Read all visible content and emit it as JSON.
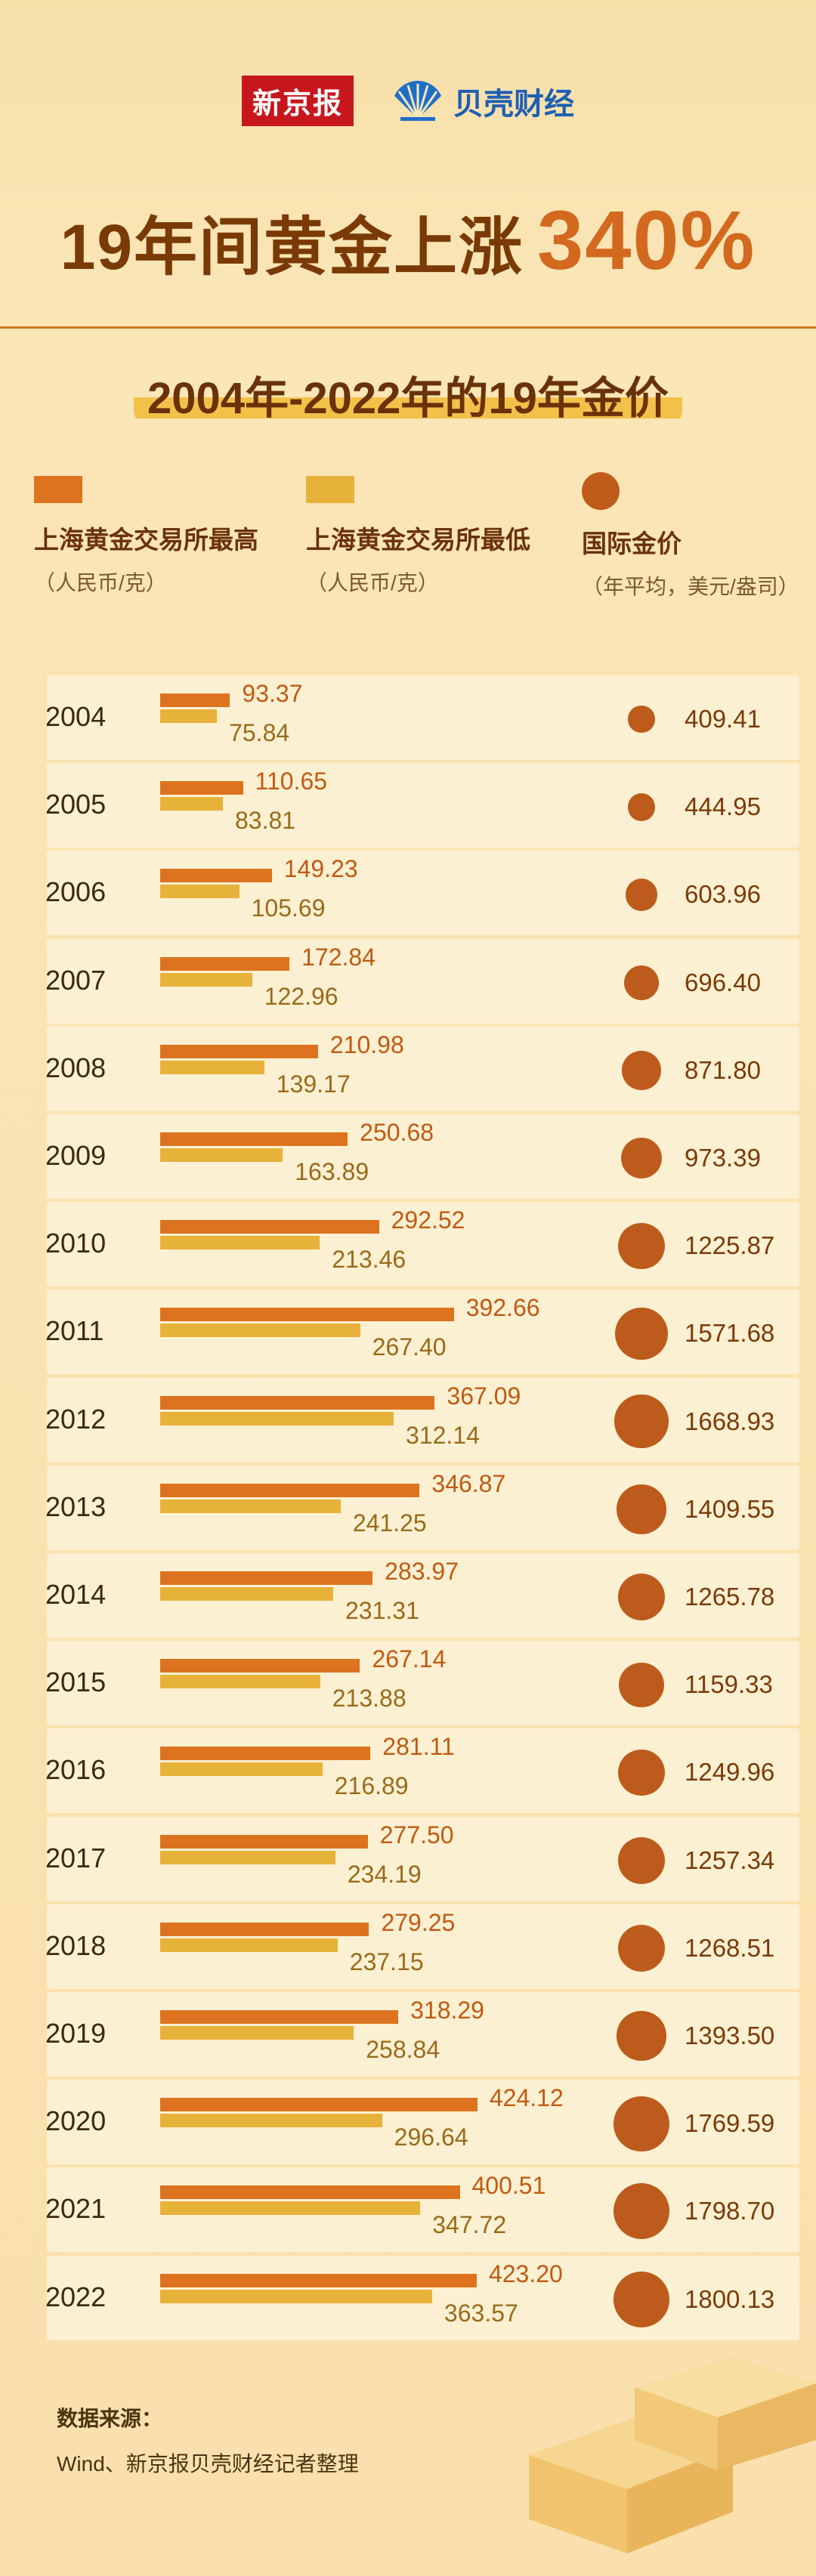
{
  "brand": {
    "logo1": "新京报",
    "logo2": "贝壳财经"
  },
  "headline": {
    "main": "19年间黄金上涨",
    "highlight": "340%"
  },
  "subtitle": "2004年-2022年的19年金价",
  "legend": {
    "high": {
      "label": "上海黄金交易所最高",
      "unit": "（人民币/克）",
      "color": "#dd731f"
    },
    "low": {
      "label": "上海黄金交易所最低",
      "unit": "（人民币/克）",
      "color": "#e7b23a"
    },
    "intl": {
      "label": "国际金价",
      "unit": "（年平均，美元/盎司）",
      "color": "#bd5b1c"
    }
  },
  "chart_data": {
    "type": "bar",
    "title": "2004年-2022年的19年金价",
    "categories": [
      "2004",
      "2005",
      "2006",
      "2007",
      "2008",
      "2009",
      "2010",
      "2011",
      "2012",
      "2013",
      "2014",
      "2015",
      "2016",
      "2017",
      "2018",
      "2019",
      "2020",
      "2021",
      "2022"
    ],
    "series": [
      {
        "name": "上海黄金交易所最高",
        "unit": "人民币/克",
        "values": [
          "93.37",
          "110.65",
          "149.23",
          "172.84",
          "210.98",
          "250.68",
          "292.52",
          "392.66",
          "367.09",
          "346.87",
          "283.97",
          "267.14",
          "281.11",
          "277.50",
          "279.25",
          "318.29",
          "424.12",
          "400.51",
          "423.20"
        ]
      },
      {
        "name": "上海黄金交易所最低",
        "unit": "人民币/克",
        "values": [
          "75.84",
          "83.81",
          "105.69",
          "122.96",
          "139.17",
          "163.89",
          "213.46",
          "267.40",
          "312.14",
          "241.25",
          "231.31",
          "213.88",
          "216.89",
          "234.19",
          "237.15",
          "258.84",
          "296.64",
          "347.72",
          "363.57"
        ]
      },
      {
        "name": "国际金价",
        "unit": "年平均，美元/盎司",
        "values": [
          "409.41",
          "444.95",
          "603.96",
          "696.40",
          "871.80",
          "973.39",
          "1225.87",
          "1571.68",
          "1668.93",
          "1409.55",
          "1265.78",
          "1159.33",
          "1249.96",
          "1257.34",
          "1268.51",
          "1393.50",
          "1769.59",
          "1798.70",
          "1800.13"
        ]
      }
    ]
  },
  "source": {
    "title": "数据来源：",
    "text": "Wind、新京报贝壳财经记者整理"
  }
}
